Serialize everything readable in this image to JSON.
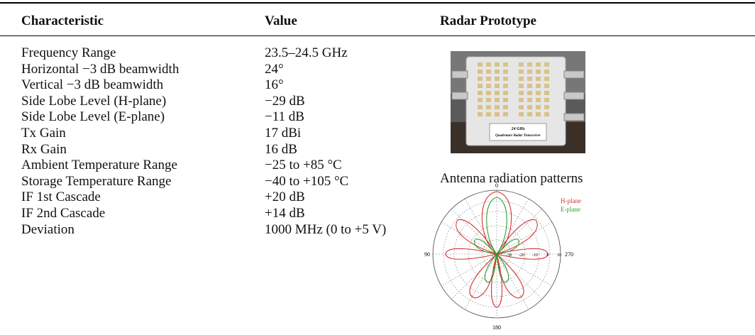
{
  "table": {
    "headers": [
      "Characteristic",
      "Value",
      "Radar Prototype"
    ],
    "rows": [
      [
        "Frequency Range",
        "23.5–24.5 GHz"
      ],
      [
        "Horizontal −3 dB beamwidth",
        "24°"
      ],
      [
        "Vertical −3 dB beamwidth",
        "16°"
      ],
      [
        "Side Lobe Level (H-plane)",
        "−29 dB"
      ],
      [
        "Side Lobe Level (E-plane)",
        "−11 dB"
      ],
      [
        "Tx Gain",
        "17 dBi"
      ],
      [
        "Rx Gain",
        "16 dB"
      ],
      [
        "Ambient Temperature Range",
        "−25 to +85 °C"
      ],
      [
        "Storage Temperature Range",
        "−40 to +105 °C"
      ],
      [
        "IF 1st Cascade",
        "+20 dB"
      ],
      [
        "IF 2nd Cascade",
        "+14 dB"
      ],
      [
        "Deviation",
        "1000 MHz (0 to +5 V)"
      ]
    ]
  },
  "photo": {
    "label_line1": "24 GHz",
    "label_line2": "Quadrature Radar Transceiver"
  },
  "pattern_figure": {
    "caption": "Antenna radiation patterns",
    "angle_labels": [
      "0",
      "90",
      "180",
      "270"
    ],
    "radial_labels": [
      "-30",
      "-20",
      "-10",
      "0",
      "10"
    ],
    "legend": [
      "H-plane",
      "E-plane"
    ]
  }
}
